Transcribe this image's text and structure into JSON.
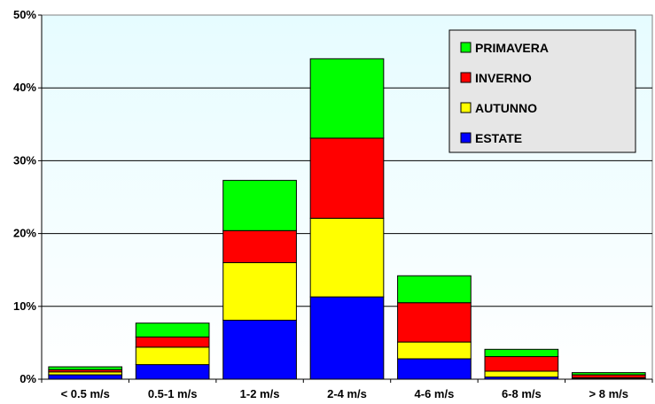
{
  "chart_data": {
    "type": "bar",
    "stacked": true,
    "categories": [
      "< 0.5 m/s",
      "0.5-1 m/s",
      "1-2 m/s",
      "2-4 m/s",
      "4-6 m/s",
      "6-8 m/s",
      "> 8 m/s"
    ],
    "series": [
      {
        "name": "ESTATE",
        "color": "#0000ff",
        "values": [
          0.6,
          2.0,
          8.1,
          11.3,
          2.8,
          0.3,
          0.1
        ]
      },
      {
        "name": "AUTUNNO",
        "color": "#ffff00",
        "values": [
          0.4,
          2.4,
          7.9,
          10.8,
          2.3,
          0.8,
          0.1
        ]
      },
      {
        "name": "INVERNO",
        "color": "#ff0000",
        "values": [
          0.3,
          1.4,
          4.4,
          11.0,
          5.4,
          2.0,
          0.4
        ]
      },
      {
        "name": "PRIMAVERA",
        "color": "#00ff00",
        "values": [
          0.4,
          1.9,
          6.9,
          10.9,
          3.7,
          1.0,
          0.3
        ]
      }
    ],
    "yticks": [
      "0%",
      "10%",
      "20%",
      "30%",
      "40%",
      "50%"
    ],
    "ylim": [
      0,
      50
    ],
    "grid": true,
    "legend": {
      "placement": "top-right",
      "order": [
        "PRIMAVERA",
        "INVERNO",
        "AUTUNNO",
        "ESTATE"
      ]
    },
    "plot_background": "#e6fcff"
  }
}
